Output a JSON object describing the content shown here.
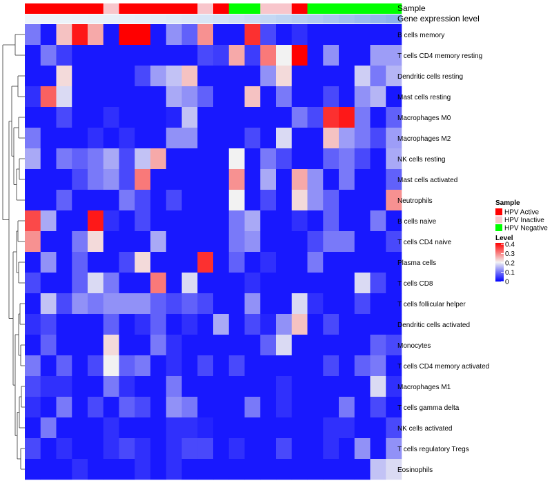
{
  "chart_data": {
    "type": "heatmap",
    "annotation_labels": [
      "Sample",
      "Gene expression level"
    ],
    "sample_groups": [
      "A",
      "A",
      "A",
      "A",
      "A",
      "I",
      "A",
      "A",
      "A",
      "A",
      "A",
      "I",
      "A",
      "N",
      "N",
      "I",
      "I",
      "A",
      "N",
      "N",
      "N",
      "N",
      "N",
      "N"
    ],
    "expression_shades": [
      "#eef4fb",
      "#edf3fa",
      "#ecf3fa",
      "#ebf2fa",
      "#eaf1f9",
      "#e8f0f9",
      "#e6eff9",
      "#e4eef9",
      "#e2ecf8",
      "#dfeaf8",
      "#dce8f7",
      "#d8e6f7",
      "#d4e3f6",
      "#cfe0f5",
      "#cadcf4",
      "#c4d8f3",
      "#bed4f2",
      "#b8cff1",
      "#b1cbf0",
      "#aac6ef",
      "#a3c1ee",
      "#9bbced",
      "#93b7ec",
      "#8cb2eb"
    ],
    "rows": [
      "B cells memory",
      "T cells CD4 memory resting",
      "Dendritic cells resting",
      "Mast cells resting",
      "Macrophages M0",
      "Macrophages M2",
      "NK cells resting",
      "Mast cells activated",
      "Neutrophils",
      "B cells naive",
      "T cells CD4 naive",
      "Plasma cells",
      "T cells CD8",
      "T cells follicular helper",
      "Dendritic cells activated",
      "Monocytes",
      "T cells CD4 memory activated",
      "Macrophages M1",
      "T cells gamma delta",
      "NK cells activated",
      "T cells regulatory  Tregs",
      "Eosinophils"
    ],
    "values": [
      [
        0.1,
        0.02,
        0.24,
        0.38,
        0.26,
        0.02,
        0.4,
        0.4,
        0.02,
        0.12,
        0.08,
        0.28,
        0.02,
        0.02,
        0.36,
        0.06,
        0.02,
        0.04,
        0.02,
        0.02,
        0.02,
        0.02,
        0.02,
        0.02
      ],
      [
        0.02,
        0.1,
        0.05,
        0.02,
        0.02,
        0.02,
        0.02,
        0.02,
        0.02,
        0.02,
        0.02,
        0.06,
        0.05,
        0.26,
        0.05,
        0.3,
        0.2,
        0.4,
        0.02,
        0.12,
        0.02,
        0.02,
        0.13,
        0.13
      ],
      [
        0.02,
        0.02,
        0.22,
        0.02,
        0.02,
        0.02,
        0.02,
        0.06,
        0.13,
        0.16,
        0.24,
        0.02,
        0.02,
        0.02,
        0.02,
        0.12,
        0.22,
        0.02,
        0.02,
        0.02,
        0.02,
        0.17,
        0.1,
        0.15
      ],
      [
        0.04,
        0.32,
        0.18,
        0.02,
        0.02,
        0.02,
        0.02,
        0.02,
        0.02,
        0.14,
        0.12,
        0.08,
        0.02,
        0.02,
        0.24,
        0.02,
        0.1,
        0.02,
        0.02,
        0.06,
        0.02,
        0.12,
        0.15,
        0.02
      ],
      [
        0.02,
        0.02,
        0.06,
        0.02,
        0.02,
        0.04,
        0.02,
        0.02,
        0.02,
        0.03,
        0.16,
        0.02,
        0.02,
        0.02,
        0.02,
        0.02,
        0.02,
        0.1,
        0.06,
        0.36,
        0.38,
        0.1,
        0.02,
        0.08
      ],
      [
        0.1,
        0.02,
        0.02,
        0.02,
        0.04,
        0.02,
        0.04,
        0.02,
        0.02,
        0.12,
        0.12,
        0.02,
        0.02,
        0.02,
        0.06,
        0.02,
        0.18,
        0.02,
        0.02,
        0.24,
        0.13,
        0.1,
        0.06,
        0.13
      ],
      [
        0.14,
        0.02,
        0.1,
        0.08,
        0.1,
        0.14,
        0.06,
        0.16,
        0.26,
        0.02,
        0.02,
        0.02,
        0.02,
        0.2,
        0.02,
        0.1,
        0.06,
        0.02,
        0.02,
        0.08,
        0.1,
        0.06,
        0.02,
        0.14
      ],
      [
        0.02,
        0.02,
        0.02,
        0.06,
        0.1,
        0.12,
        0.06,
        0.3,
        0.02,
        0.02,
        0.02,
        0.02,
        0.02,
        0.28,
        0.02,
        0.14,
        0.02,
        0.26,
        0.12,
        0.02,
        0.1,
        0.02,
        0.02,
        0.08
      ],
      [
        0.02,
        0.02,
        0.08,
        0.02,
        0.02,
        0.02,
        0.1,
        0.06,
        0.02,
        0.06,
        0.02,
        0.02,
        0.02,
        0.2,
        0.02,
        0.06,
        0.02,
        0.22,
        0.12,
        0.08,
        0.02,
        0.02,
        0.02,
        0.28
      ],
      [
        0.34,
        0.14,
        0.02,
        0.02,
        0.38,
        0.04,
        0.02,
        0.06,
        0.02,
        0.02,
        0.02,
        0.02,
        0.02,
        0.1,
        0.14,
        0.02,
        0.02,
        0.04,
        0.02,
        0.08,
        0.02,
        0.02,
        0.1,
        0.02
      ],
      [
        0.28,
        0.02,
        0.02,
        0.1,
        0.22,
        0.02,
        0.02,
        0.02,
        0.14,
        0.02,
        0.02,
        0.02,
        0.02,
        0.1,
        0.12,
        0.02,
        0.02,
        0.02,
        0.06,
        0.1,
        0.1,
        0.02,
        0.02,
        0.06
      ],
      [
        0.02,
        0.12,
        0.02,
        0.08,
        0.02,
        0.02,
        0.06,
        0.22,
        0.02,
        0.02,
        0.02,
        0.36,
        0.02,
        0.08,
        0.02,
        0.04,
        0.02,
        0.02,
        0.1,
        0.02,
        0.02,
        0.02,
        0.02,
        0.02
      ],
      [
        0.06,
        0.02,
        0.02,
        0.08,
        0.18,
        0.1,
        0.02,
        0.02,
        0.3,
        0.02,
        0.18,
        0.02,
        0.02,
        0.02,
        0.04,
        0.02,
        0.02,
        0.02,
        0.02,
        0.02,
        0.02,
        0.18,
        0.06,
        0.02
      ],
      [
        0.02,
        0.16,
        0.06,
        0.12,
        0.1,
        0.12,
        0.12,
        0.12,
        0.08,
        0.06,
        0.08,
        0.06,
        0.02,
        0.02,
        0.12,
        0.02,
        0.02,
        0.18,
        0.04,
        0.02,
        0.02,
        0.06,
        0.02,
        0.02
      ],
      [
        0.04,
        0.06,
        0.02,
        0.02,
        0.02,
        0.08,
        0.02,
        0.04,
        0.08,
        0.02,
        0.04,
        0.02,
        0.14,
        0.02,
        0.06,
        0.03,
        0.12,
        0.24,
        0.02,
        0.06,
        0.02,
        0.02,
        0.02,
        0.02
      ],
      [
        0.02,
        0.08,
        0.02,
        0.02,
        0.02,
        0.22,
        0.02,
        0.02,
        0.1,
        0.04,
        0.02,
        0.02,
        0.02,
        0.02,
        0.02,
        0.08,
        0.18,
        0.02,
        0.02,
        0.02,
        0.02,
        0.02,
        0.08,
        0.06
      ],
      [
        0.1,
        0.02,
        0.08,
        0.02,
        0.06,
        0.2,
        0.08,
        0.1,
        0.02,
        0.04,
        0.02,
        0.06,
        0.02,
        0.06,
        0.02,
        0.02,
        0.02,
        0.02,
        0.02,
        0.06,
        0.02,
        0.08,
        0.1,
        0.02
      ],
      [
        0.06,
        0.04,
        0.04,
        0.02,
        0.02,
        0.1,
        0.04,
        0.02,
        0.02,
        0.1,
        0.02,
        0.02,
        0.02,
        0.02,
        0.02,
        0.02,
        0.04,
        0.02,
        0.02,
        0.02,
        0.02,
        0.02,
        0.18,
        0.04
      ],
      [
        0.04,
        0.02,
        0.1,
        0.02,
        0.06,
        0.02,
        0.08,
        0.06,
        0.02,
        0.12,
        0.1,
        0.02,
        0.02,
        0.02,
        0.1,
        0.02,
        0.04,
        0.02,
        0.02,
        0.02,
        0.1,
        0.02,
        0.06,
        0.02
      ],
      [
        0.02,
        0.1,
        0.02,
        0.02,
        0.02,
        0.04,
        0.02,
        0.02,
        0.02,
        0.04,
        0.04,
        0.03,
        0.02,
        0.02,
        0.02,
        0.02,
        0.02,
        0.02,
        0.02,
        0.04,
        0.04,
        0.02,
        0.02,
        0.06
      ],
      [
        0.06,
        0.02,
        0.04,
        0.02,
        0.02,
        0.04,
        0.06,
        0.04,
        0.02,
        0.04,
        0.06,
        0.06,
        0.02,
        0.04,
        0.02,
        0.02,
        0.06,
        0.02,
        0.02,
        0.04,
        0.02,
        0.12,
        0.02,
        0.12
      ],
      [
        0.02,
        0.02,
        0.02,
        0.04,
        0.02,
        0.02,
        0.02,
        0.04,
        0.02,
        0.04,
        0.02,
        0.02,
        0.02,
        0.02,
        0.02,
        0.02,
        0.02,
        0.02,
        0.02,
        0.02,
        0.02,
        0.02,
        0.16,
        0.18
      ]
    ],
    "color_scale": {
      "low": "#0000ff",
      "mid": "#f2f2f2",
      "high": "#ff0000",
      "domain": [
        0,
        0.2,
        0.4
      ]
    },
    "legend": {
      "sample_title": "Sample",
      "sample_entries": [
        {
          "key": "A",
          "label": "HPV Active",
          "color": "#ff0000"
        },
        {
          "key": "I",
          "label": "HPV Inactive",
          "color": "#f8c6cc"
        },
        {
          "key": "N",
          "label": "HPV Negative",
          "color": "#00ff00"
        }
      ],
      "level_title": "Level",
      "level_ticks": [
        "0.4",
        "0.3",
        "0.2",
        "0.1",
        "0"
      ],
      "placement": "right"
    },
    "dendrogram": "rows"
  }
}
